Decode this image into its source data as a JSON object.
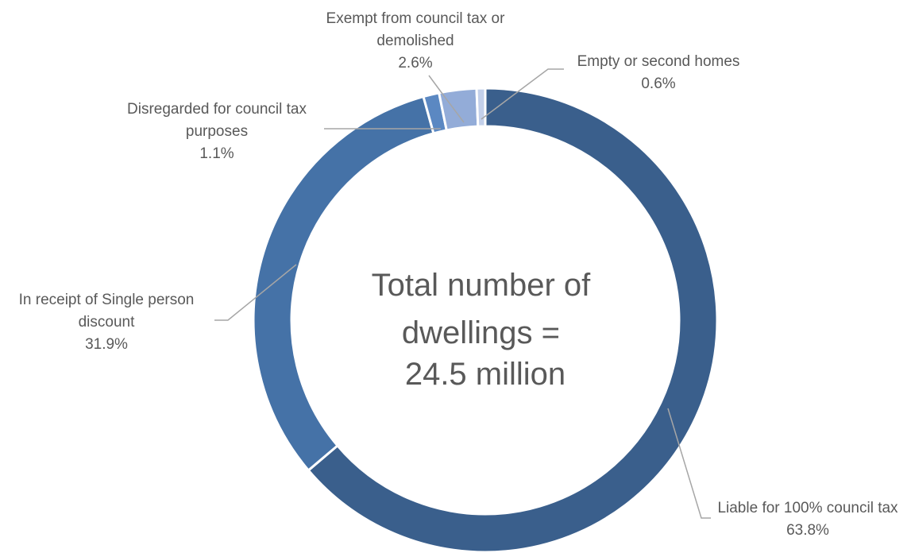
{
  "chart_data": {
    "type": "pie",
    "donut": true,
    "center_text": [
      "Total number of",
      "dwellings =",
      "24.5 million"
    ],
    "slices": [
      {
        "label": "Liable for 100% council tax",
        "label_lines": [
          "Liable for 100% council tax"
        ],
        "value": 63.8,
        "value_label": "63.8%",
        "color": "#3a5f8c"
      },
      {
        "label": "In receipt of Single person discount",
        "label_lines": [
          "In receipt of Single person",
          "discount"
        ],
        "value": 31.9,
        "value_label": "31.9%",
        "color": "#4572a7"
      },
      {
        "label": "Disregarded for council tax purposes",
        "label_lines": [
          "Disregarded for council tax",
          "purposes"
        ],
        "value": 1.1,
        "value_label": "1.1%",
        "color": "#5b88c2"
      },
      {
        "label": "Exempt from council tax or demolished",
        "label_lines": [
          "Exempt from council tax or",
          "demolished"
        ],
        "value": 2.6,
        "value_label": "2.6%",
        "color": "#93acd8"
      },
      {
        "label": "Empty or second homes",
        "label_lines": [
          "Empty or second homes"
        ],
        "value": 0.6,
        "value_label": "0.6%",
        "color": "#c3d0ea"
      }
    ]
  }
}
